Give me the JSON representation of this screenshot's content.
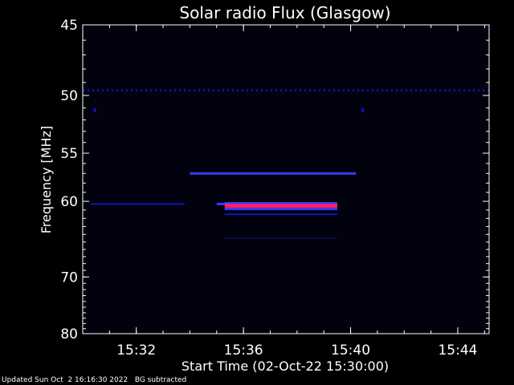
{
  "footer": {
    "updated": "Updated Sun Oct  2 16:16:30 2022",
    "note": "BG subtracted"
  },
  "chart_data": {
    "type": "heatmap",
    "title": "Solar radio Flux (Glasgow)",
    "xlabel": "Start Time (02-Oct-22 15:30:00)",
    "ylabel": "Frequency [MHz]",
    "x_axis": {
      "start": "15:30:00",
      "end": "15:45:10",
      "unit": "minutes since 15:30",
      "xlim": [
        0,
        15.17
      ]
    },
    "y_axis": {
      "unit": "MHz",
      "scale": "reciprocal",
      "ylim": [
        45,
        80
      ],
      "inverted": true
    },
    "x_ticks": [
      {
        "value": 2,
        "label": "15:32"
      },
      {
        "value": 6,
        "label": "15:36"
      },
      {
        "value": 10,
        "label": "15:40"
      },
      {
        "value": 14,
        "label": "15:44"
      }
    ],
    "y_ticks": [
      {
        "value": 45,
        "label": "45"
      },
      {
        "value": 50,
        "label": "50"
      },
      {
        "value": 55,
        "label": "55"
      },
      {
        "value": 60,
        "label": "60"
      },
      {
        "value": 70,
        "label": "70"
      },
      {
        "value": 80,
        "label": "80"
      }
    ],
    "colors": {
      "background": "#000000",
      "low": "#1010c0",
      "mid": "#3a3aff",
      "high": "#ff2060",
      "faint": "#0a0a3a"
    },
    "features": [
      {
        "name": "constant emission line",
        "freq_mhz": 49.6,
        "t_start": 0,
        "t_end": 15.17,
        "intensity": "low",
        "style": "dashed"
      },
      {
        "name": "emission line",
        "freq_mhz": 60.3,
        "t_start": 0.3,
        "t_end": 3.8,
        "intensity": "low",
        "style": "solid"
      },
      {
        "name": "emission line",
        "freq_mhz": 60.3,
        "t_start": 5.0,
        "t_end": 9.5,
        "intensity": "mid",
        "style": "solid"
      },
      {
        "name": "intense emission band",
        "freq_mhz": 60.5,
        "t_start": 5.3,
        "t_end": 9.5,
        "intensity": "high",
        "style": "solid"
      },
      {
        "name": "emission band",
        "freq_mhz": 57.0,
        "t_start": 4.0,
        "t_end": 10.2,
        "intensity": "mid",
        "style": "solid"
      },
      {
        "name": "faint band",
        "freq_mhz": 61.5,
        "t_start": 5.3,
        "t_end": 9.5,
        "intensity": "low",
        "style": "solid"
      },
      {
        "name": "faint band",
        "freq_mhz": 64.5,
        "t_start": 5.3,
        "t_end": 9.5,
        "intensity": "faint",
        "style": "solid"
      },
      {
        "name": "spike",
        "freq_mhz": 51.2,
        "t_start": 0.4,
        "t_end": 0.5,
        "intensity": "low",
        "style": "solid"
      },
      {
        "name": "spike",
        "freq_mhz": 51.2,
        "t_start": 10.4,
        "t_end": 10.5,
        "intensity": "low",
        "style": "solid"
      }
    ]
  }
}
